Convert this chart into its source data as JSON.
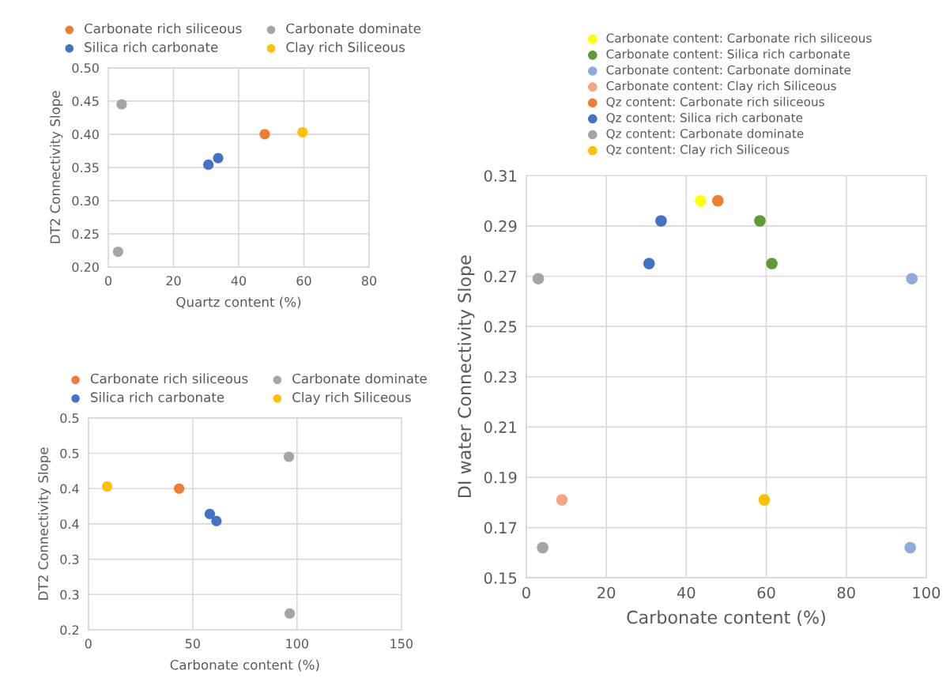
{
  "chart_data": [
    {
      "type": "scatter",
      "xlabel": "Quartz content (%)",
      "ylabel": "DT2 Connectivity Slope",
      "xlim": [
        0,
        80
      ],
      "xticks": [
        0,
        20,
        40,
        60,
        80
      ],
      "ylim": [
        0.2,
        0.5
      ],
      "yticks": [
        {
          "value": 0.2,
          "label": "0.20"
        },
        {
          "value": 0.25,
          "label": "0.25"
        },
        {
          "value": 0.3,
          "label": "0.30"
        },
        {
          "value": 0.35,
          "label": "0.35"
        },
        {
          "value": 0.4,
          "label": "0.40"
        },
        {
          "value": 0.45,
          "label": "0.45"
        },
        {
          "value": 0.5,
          "label": "0.50"
        }
      ],
      "grid": true,
      "legend": "top",
      "marker": "circle",
      "series": [
        {
          "name": "Carbonate rich siliceous",
          "color": "#ed7d31",
          "x": [
            48.0
          ],
          "values": [
            0.4
          ]
        },
        {
          "name": "Silica rich carbonate",
          "color": "#4472c4",
          "x": [
            30.7,
            33.7
          ],
          "values": [
            0.354,
            0.364
          ]
        },
        {
          "name": "Carbonate dominate",
          "color": "#a5a5a5",
          "x": [
            4.1,
            3.0
          ],
          "values": [
            0.445,
            0.223
          ]
        },
        {
          "name": "Clay rich Siliceous",
          "color": "#ffc000",
          "x": [
            59.6
          ],
          "values": [
            0.403
          ]
        }
      ]
    },
    {
      "type": "scatter",
      "xlabel": "Carbonate content (%)",
      "ylabel": "DT2 Connectivity Slope",
      "xlim": [
        0,
        150
      ],
      "xticks": [
        0,
        50,
        100,
        150
      ],
      "ylim": [
        0.2,
        0.5
      ],
      "yticks": [
        {
          "value": 0.2,
          "label": "0.2"
        },
        {
          "value": 0.25,
          "label": "0.3"
        },
        {
          "value": 0.3,
          "label": "0.3"
        },
        {
          "value": 0.35,
          "label": "0.4"
        },
        {
          "value": 0.4,
          "label": "0.4"
        },
        {
          "value": 0.45,
          "label": "0.5"
        },
        {
          "value": 0.5,
          "label": "0.5"
        }
      ],
      "grid": true,
      "legend": "top",
      "marker": "circle",
      "series": [
        {
          "name": "Carbonate rich siliceous",
          "color": "#ed7d31",
          "x": [
            43.5
          ],
          "values": [
            0.4
          ]
        },
        {
          "name": "Silica rich carbonate",
          "color": "#4472c4",
          "x": [
            58.2,
            61.4
          ],
          "values": [
            0.364,
            0.354
          ]
        },
        {
          "name": "Carbonate dominate",
          "color": "#a5a5a5",
          "x": [
            96.1,
            96.5
          ],
          "values": [
            0.445,
            0.223
          ]
        },
        {
          "name": "Clay rich Siliceous",
          "color": "#ffc000",
          "x": [
            9.0
          ],
          "values": [
            0.403
          ]
        }
      ]
    },
    {
      "type": "scatter",
      "xlabel": "Carbonate content (%)",
      "ylabel": "DI water Connectivity Slope",
      "xlim": [
        0,
        100
      ],
      "xticks": [
        0,
        20,
        40,
        60,
        80,
        100
      ],
      "ylim": [
        0.15,
        0.31
      ],
      "yticks": [
        0.15,
        0.17,
        0.19,
        0.21,
        0.23,
        0.25,
        0.27,
        0.29,
        0.31
      ],
      "grid": true,
      "legend": "top",
      "marker": "circle",
      "series": [
        {
          "name": "Carbonate content: Carbonate rich siliceous",
          "color": "#ffff00",
          "x": [
            43.6
          ],
          "values": [
            0.3
          ]
        },
        {
          "name": "Carbonate content: Silica rich carbonate",
          "color": "#5f9a37",
          "x": [
            58.4,
            61.4
          ],
          "values": [
            0.292,
            0.275
          ]
        },
        {
          "name": "Carbonate content: Carbonate dominate",
          "color": "#8faadc",
          "x": [
            96.4,
            96.0
          ],
          "values": [
            0.269,
            0.162
          ]
        },
        {
          "name": "Carbonate content: Clay rich Siliceous",
          "color": "#f4a582",
          "x": [
            8.9
          ],
          "values": [
            0.181
          ]
        },
        {
          "name": "Qz content: Carbonate rich siliceous",
          "color": "#ed7d31",
          "x": [
            47.9
          ],
          "values": [
            0.3
          ]
        },
        {
          "name": "Qz content: Silica rich carbonate",
          "color": "#4472c4",
          "x": [
            33.7,
            30.7
          ],
          "values": [
            0.292,
            0.275
          ]
        },
        {
          "name": "Qz content: Carbonate dominate",
          "color": "#a5a5a5",
          "x": [
            3.0,
            4.1
          ],
          "values": [
            0.269,
            0.162
          ]
        },
        {
          "name": "Qz content: Clay rich Siliceous",
          "color": "#ffc000",
          "x": [
            59.5
          ],
          "values": [
            0.181
          ]
        }
      ]
    }
  ]
}
